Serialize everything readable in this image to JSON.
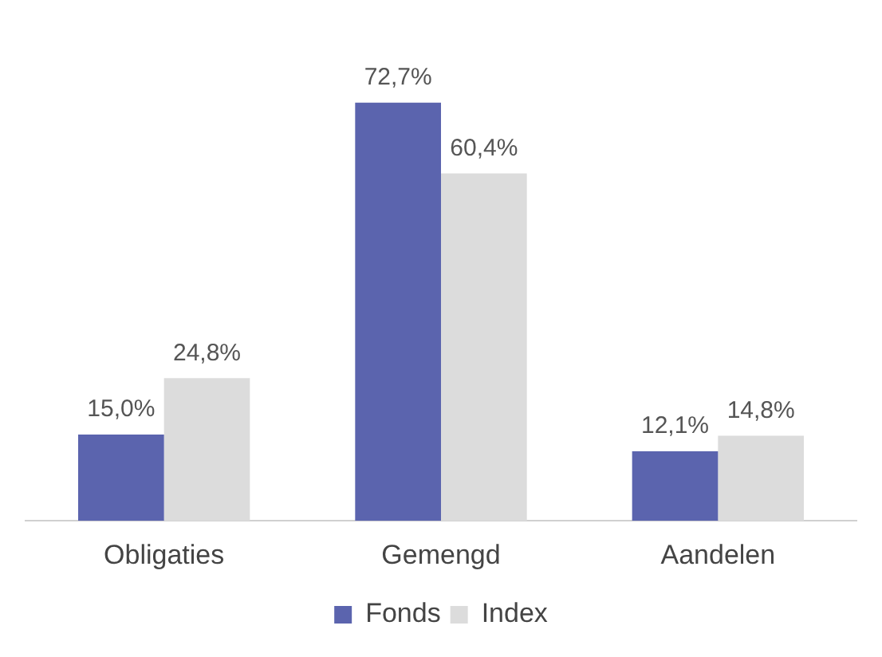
{
  "chart_data": {
    "type": "bar",
    "categories": [
      "Obligaties",
      "Gemengd",
      "Aandelen"
    ],
    "series": [
      {
        "name": "Fonds",
        "color": "#5b64ae",
        "values": [
          15.0,
          72.7,
          12.1
        ],
        "value_labels": [
          "15,0%",
          "72,7%",
          "12,1%"
        ]
      },
      {
        "name": "Index",
        "color": "#dcdcdc",
        "values": [
          24.8,
          60.4,
          14.8
        ],
        "value_labels": [
          "24,8%",
          "60,4%",
          "14,8%"
        ]
      }
    ],
    "legend": "bottom",
    "grid": false
  }
}
